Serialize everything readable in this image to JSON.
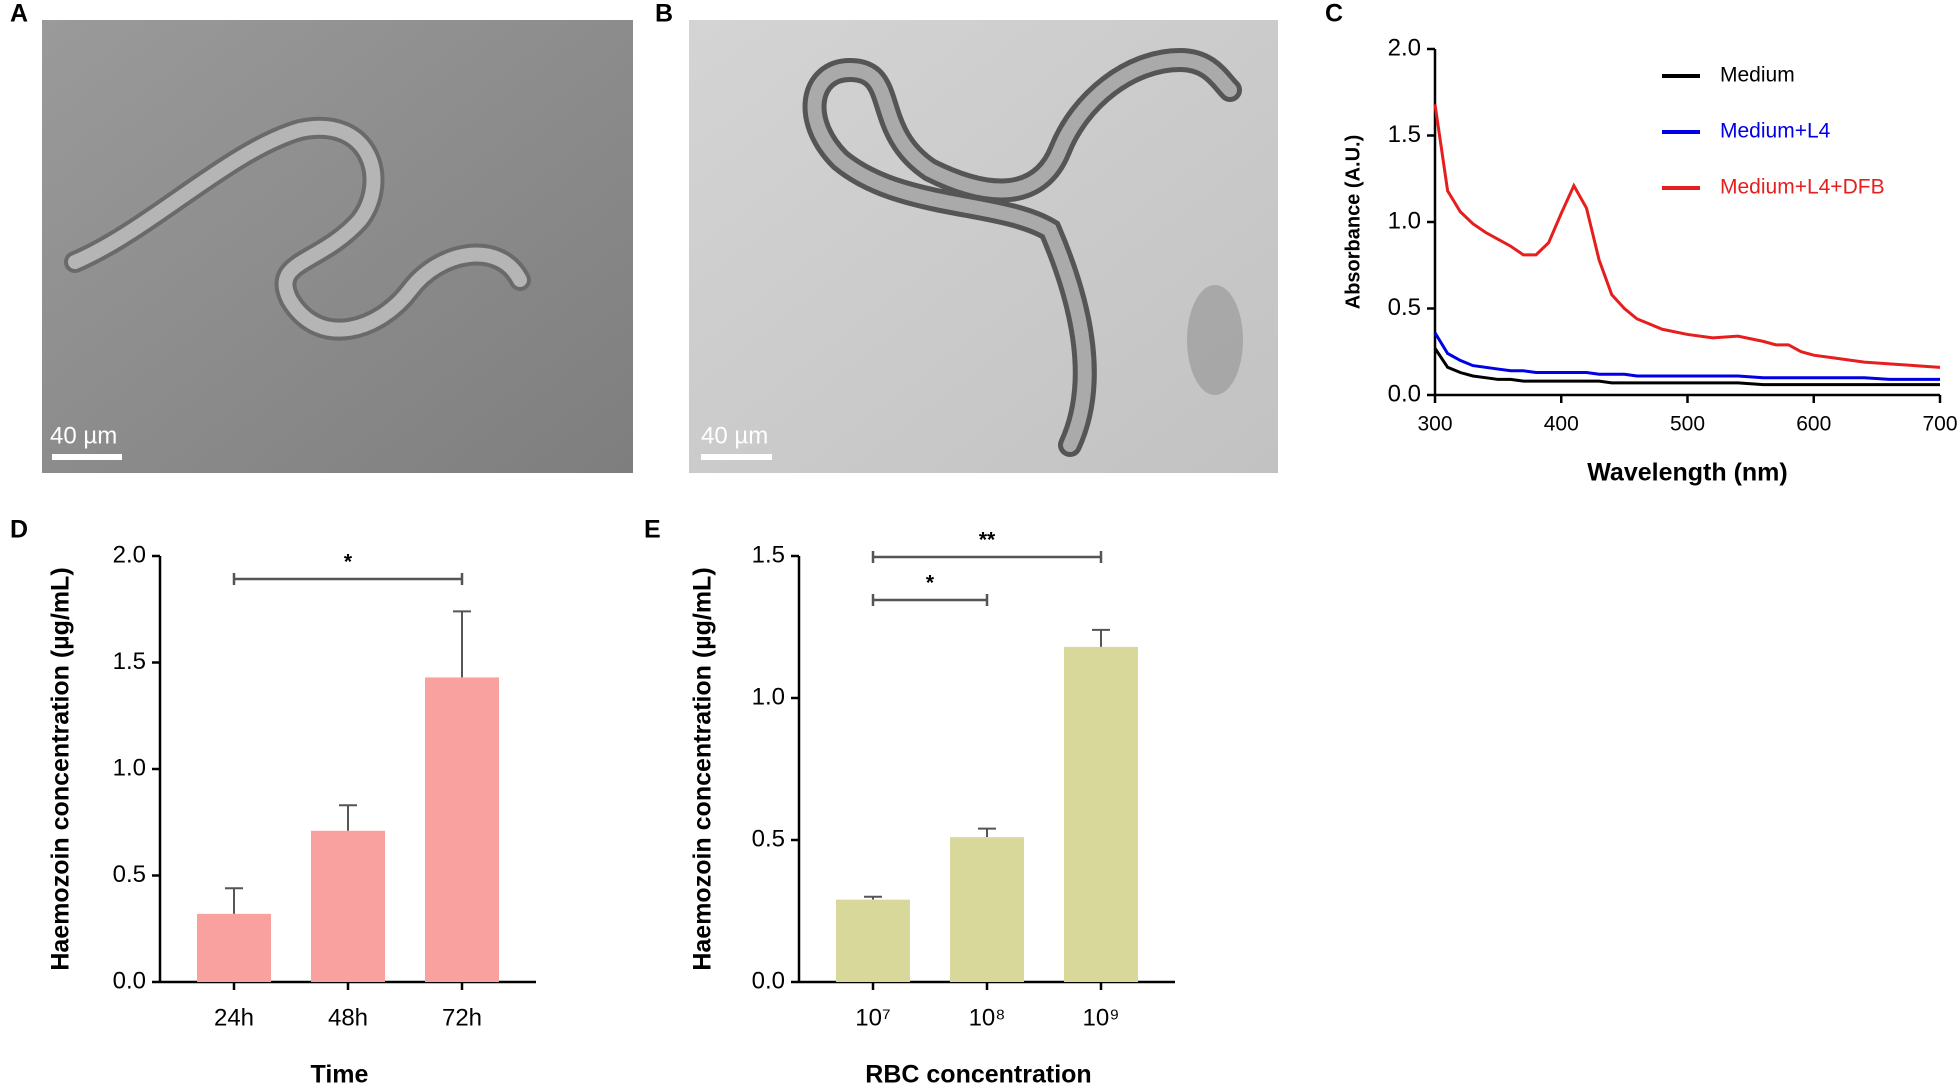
{
  "images": [
    {
      "panel": "A",
      "scale_bar": "40 µm"
    },
    {
      "panel": "B",
      "scale_bar": "40 µm"
    }
  ],
  "chart_data": [
    {
      "type": "line",
      "panel": "C",
      "x_label": "Wavelength (nm)",
      "y_label": "Absorbance (A.U.)",
      "x": [
        300,
        310,
        320,
        330,
        340,
        350,
        360,
        370,
        380,
        390,
        400,
        410,
        420,
        430,
        440,
        450,
        460,
        480,
        500,
        520,
        540,
        560,
        570,
        580,
        590,
        600,
        620,
        640,
        660,
        680,
        700
      ],
      "series": [
        {
          "name": "Medium",
          "color": "#000000",
          "values": [
            0.27,
            0.16,
            0.13,
            0.11,
            0.1,
            0.09,
            0.09,
            0.08,
            0.08,
            0.08,
            0.08,
            0.08,
            0.08,
            0.08,
            0.07,
            0.07,
            0.07,
            0.07,
            0.07,
            0.07,
            0.07,
            0.06,
            0.06,
            0.06,
            0.06,
            0.06,
            0.06,
            0.06,
            0.06,
            0.06,
            0.06
          ]
        },
        {
          "name": "Medium+L4",
          "color": "#0000e6",
          "values": [
            0.36,
            0.24,
            0.2,
            0.17,
            0.16,
            0.15,
            0.14,
            0.14,
            0.13,
            0.13,
            0.13,
            0.13,
            0.13,
            0.12,
            0.12,
            0.12,
            0.11,
            0.11,
            0.11,
            0.11,
            0.11,
            0.1,
            0.1,
            0.1,
            0.1,
            0.1,
            0.1,
            0.1,
            0.09,
            0.09,
            0.09
          ]
        },
        {
          "name": "Medium+L4+DFB",
          "color": "#e61e1e",
          "values": [
            1.68,
            1.18,
            1.06,
            0.99,
            0.94,
            0.9,
            0.86,
            0.81,
            0.81,
            0.88,
            1.05,
            1.21,
            1.08,
            0.78,
            0.58,
            0.5,
            0.44,
            0.38,
            0.35,
            0.33,
            0.34,
            0.31,
            0.29,
            0.29,
            0.25,
            0.23,
            0.21,
            0.19,
            0.18,
            0.17,
            0.16
          ]
        }
      ],
      "xlim": [
        300,
        700
      ],
      "xticks": [
        300,
        400,
        500,
        600,
        700
      ],
      "ylim": [
        0,
        2
      ],
      "yticks": [
        {
          "value": 0,
          "label": "0.0"
        },
        0.5,
        {
          "value": 1,
          "label": "1.0"
        },
        1.5,
        {
          "value": 2,
          "label": "2.0"
        }
      ],
      "legend": "upper-right"
    },
    {
      "type": "bar",
      "panel": "D",
      "x_label": "Time",
      "y_label": "Haemozoin concentration (µg/mL)",
      "categories": [
        "24h",
        "48h",
        "72h"
      ],
      "values": [
        0.32,
        0.71,
        1.43
      ],
      "errors": [
        0.12,
        0.12,
        0.31
      ],
      "color": "#f9a19e",
      "ylim": [
        0,
        2
      ],
      "yticks": [
        {
          "value": 0,
          "label": "0.0"
        },
        0.5,
        {
          "value": 1,
          "label": "1.0"
        },
        1.5,
        {
          "value": 2,
          "label": "2.0"
        }
      ],
      "significance": [
        {
          "from": 0,
          "to": 2,
          "label": "*"
        }
      ]
    },
    {
      "type": "bar",
      "panel": "E",
      "x_label": "RBC concentration",
      "y_label": "Haemozoin concentration (µg/mL)",
      "categories": [
        "10⁷",
        "10⁸",
        "10⁹"
      ],
      "values": [
        0.29,
        0.51,
        1.18
      ],
      "errors": [
        0.01,
        0.03,
        0.06
      ],
      "color": "#d8d89b",
      "ylim": [
        0,
        1.5
      ],
      "yticks": [
        {
          "value": 0,
          "label": "0.0"
        },
        0.5,
        {
          "value": 1,
          "label": "1.0"
        },
        1.5
      ],
      "significance": [
        {
          "from": 0,
          "to": 1,
          "label": "*"
        },
        {
          "from": 0,
          "to": 2,
          "label": "**"
        }
      ]
    }
  ]
}
